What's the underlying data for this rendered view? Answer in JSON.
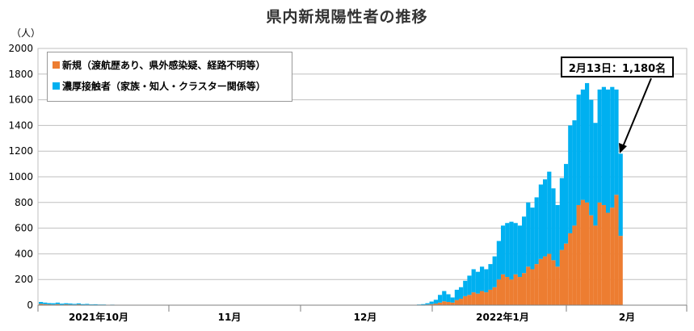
{
  "chart_data": {
    "type": "bar",
    "stacked": true,
    "title": "県内新規陽性者の推移",
    "unit_label": "（人）",
    "ylim": [
      0,
      2000
    ],
    "yticks": [
      0,
      200,
      400,
      600,
      800,
      1000,
      1200,
      1400,
      1600,
      1800,
      2000
    ],
    "grid": true,
    "legend_position": "top-left",
    "colors": {
      "new": "#ED7D31",
      "contact": "#00B0F0"
    },
    "month_labels": [
      "2021年10月",
      "11月",
      "12月",
      "2022年1月",
      "2月"
    ],
    "annotation": "2月13日：1,180名",
    "series": [
      {
        "name": "新規（渡航歴あり、県外感染疑、経路不明等）",
        "values": [
          10,
          8,
          6,
          5,
          8,
          4,
          6,
          5,
          4,
          6,
          3,
          4,
          2,
          3,
          2,
          2,
          1,
          2,
          1,
          1,
          1,
          1,
          1,
          0,
          1,
          1,
          0,
          1,
          0,
          0,
          1,
          0,
          0,
          0,
          0,
          1,
          0,
          0,
          1,
          0,
          0,
          0,
          0,
          1,
          0,
          0,
          0,
          0,
          0,
          1,
          0,
          0,
          0,
          0,
          0,
          0,
          0,
          1,
          0,
          0,
          0,
          0,
          0,
          0,
          1,
          0,
          0,
          0,
          1,
          0,
          0,
          0,
          0,
          1,
          0,
          0,
          0,
          0,
          0,
          0,
          1,
          0,
          0,
          0,
          0,
          1,
          0,
          1,
          0,
          0,
          2,
          3,
          5,
          8,
          12,
          20,
          30,
          25,
          20,
          40,
          50,
          70,
          80,
          100,
          90,
          110,
          100,
          120,
          140,
          200,
          240,
          220,
          200,
          240,
          220,
          250,
          300,
          280,
          320,
          360,
          380,
          400,
          350,
          300,
          430,
          480,
          560,
          620,
          780,
          820,
          800,
          700,
          620,
          800,
          780,
          720,
          760,
          860,
          540
        ]
      },
      {
        "name": "濃厚接触者（家族・知人・クラスター関係等）",
        "values": [
          15,
          12,
          10,
          10,
          12,
          8,
          9,
          8,
          6,
          8,
          5,
          6,
          4,
          4,
          3,
          3,
          2,
          2,
          1,
          1,
          1,
          1,
          1,
          1,
          1,
          1,
          1,
          1,
          1,
          0,
          1,
          0,
          0,
          1,
          0,
          0,
          0,
          1,
          0,
          0,
          0,
          0,
          1,
          0,
          0,
          0,
          0,
          1,
          0,
          0,
          0,
          0,
          0,
          0,
          1,
          0,
          0,
          0,
          0,
          0,
          0,
          1,
          0,
          0,
          0,
          0,
          1,
          0,
          0,
          0,
          0,
          0,
          0,
          1,
          0,
          0,
          0,
          0,
          1,
          0,
          0,
          0,
          1,
          0,
          0,
          0,
          1,
          0,
          0,
          1,
          3,
          5,
          10,
          20,
          30,
          60,
          80,
          60,
          40,
          80,
          90,
          120,
          150,
          180,
          170,
          190,
          180,
          200,
          240,
          300,
          380,
          420,
          450,
          400,
          400,
          440,
          500,
          480,
          520,
          580,
          600,
          640,
          560,
          480,
          560,
          620,
          840,
          820,
          860,
          860,
          930,
          900,
          800,
          880,
          920,
          960,
          940,
          820,
          640
        ]
      }
    ]
  }
}
